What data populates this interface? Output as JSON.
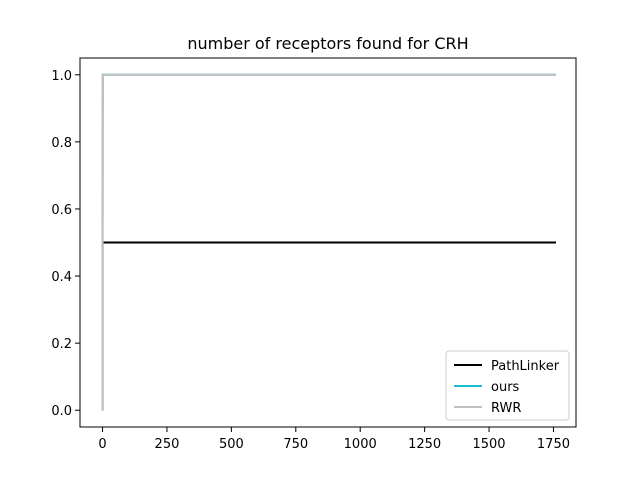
{
  "chart_data": {
    "type": "line",
    "title": "number of receptors found for CRH",
    "xlabel": "",
    "ylabel": "",
    "xlim": [
      -87.5,
      1837.5
    ],
    "ylim": [
      -0.05,
      1.05
    ],
    "xticks": [
      0,
      250,
      500,
      750,
      1000,
      1250,
      1500,
      1750
    ],
    "yticks": [
      0.0,
      0.2,
      0.4,
      0.6,
      0.8,
      1.0
    ],
    "xtick_labels": [
      "0",
      "250",
      "500",
      "750",
      "1000",
      "1250",
      "1500",
      "1750"
    ],
    "ytick_labels": [
      "0.0",
      "0.2",
      "0.4",
      "0.6",
      "0.8",
      "1.0"
    ],
    "grid": false,
    "legend_position": "lower-right",
    "series": [
      {
        "name": "PathLinker",
        "color": "#000000",
        "x": [
          0,
          0,
          1,
          2,
          1760
        ],
        "y": [
          0.0,
          0.5,
          0.5,
          0.5,
          0.5
        ]
      },
      {
        "name": "ours",
        "color": "#17becf",
        "x": [
          0,
          0,
          1,
          2,
          1760
        ],
        "y": [
          0.0,
          0.5,
          1.0,
          1.0,
          1.0
        ]
      },
      {
        "name": "RWR",
        "color": "#bfbfbf",
        "x": [
          0,
          0,
          1,
          2,
          1760
        ],
        "y": [
          0.0,
          0.5,
          1.0,
          1.0,
          1.0
        ]
      }
    ]
  }
}
